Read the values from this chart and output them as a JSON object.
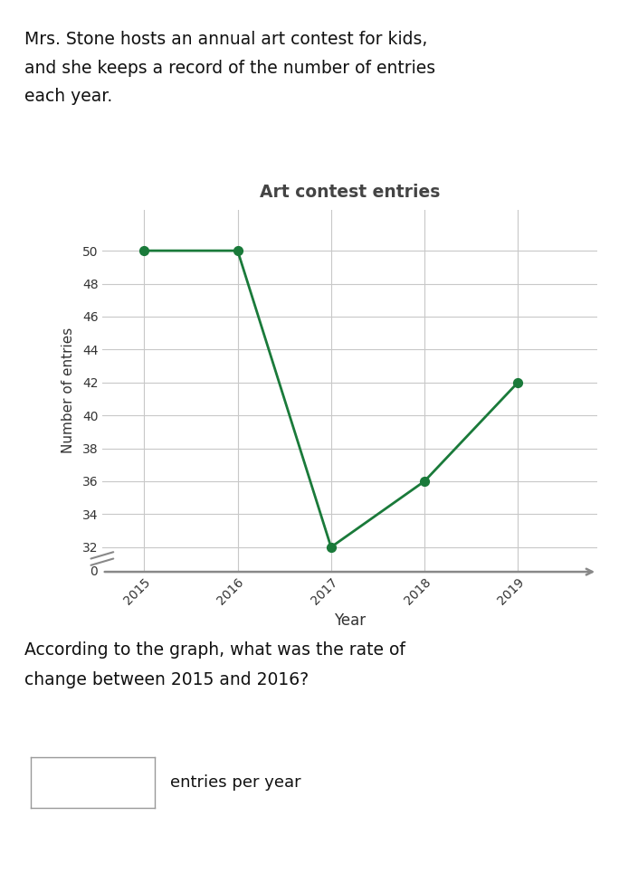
{
  "title": "Art contest entries",
  "xlabel": "Year",
  "ylabel": "Number of entries",
  "years": [
    2015,
    2016,
    2017,
    2018,
    2019
  ],
  "entries": [
    50,
    50,
    32,
    36,
    42
  ],
  "line_color": "#1a7a3a",
  "marker_color": "#1a7a3a",
  "bg_color": "#ffffff",
  "grid_color": "#c8c8c8",
  "axis_color": "#888888",
  "text_color": "#333333",
  "title_color": "#444444",
  "intro_text_line1": "Mrs. Stone hosts an annual art contest for kids,",
  "intro_text_line2": "and she keeps a record of the number of entries",
  "intro_text_line3": "each year.",
  "question_text_line1": "According to the graph, what was the rate of",
  "question_text_line2": "change between 2015 and 2016?",
  "answer_label": "entries per year",
  "yticks": [
    32,
    34,
    36,
    38,
    40,
    42,
    44,
    46,
    48,
    50
  ],
  "ylim": [
    30.5,
    52.5
  ],
  "xlim": [
    2014.55,
    2019.85
  ]
}
